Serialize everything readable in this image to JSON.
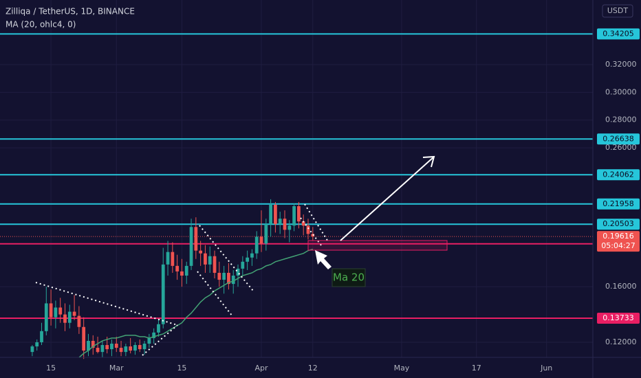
{
  "chart_data": {
    "type": "candlestick",
    "title": "Zilliqa / TetherUS, 1D, BINANCE",
    "currency": "USDT",
    "up_color": "#26a69a",
    "down_color": "#ef5350",
    "open": [
      0.113,
      0.117,
      0.12,
      0.128,
      0.148,
      0.138,
      0.145,
      0.14,
      0.134,
      0.142,
      0.139,
      0.131,
      0.114,
      0.121,
      0.116,
      0.113,
      0.118,
      0.115,
      0.119,
      0.116,
      0.113,
      0.117,
      0.114,
      0.118,
      0.115,
      0.119,
      0.123,
      0.127,
      0.133,
      0.176,
      0.185,
      0.175,
      0.171,
      0.168,
      0.175,
      0.203,
      0.186,
      0.184,
      0.176,
      0.182,
      0.17,
      0.165,
      0.17,
      0.162,
      0.168,
      0.173,
      0.178,
      0.181,
      0.184,
      0.196,
      0.191,
      0.205,
      0.219,
      0.205,
      0.209,
      0.201,
      0.204,
      0.218,
      0.207,
      0.204,
      0.198
    ],
    "high": [
      0.118,
      0.122,
      0.134,
      0.16,
      0.158,
      0.15,
      0.152,
      0.148,
      0.147,
      0.154,
      0.146,
      0.138,
      0.126,
      0.125,
      0.124,
      0.121,
      0.124,
      0.122,
      0.124,
      0.121,
      0.119,
      0.123,
      0.12,
      0.122,
      0.121,
      0.126,
      0.13,
      0.137,
      0.188,
      0.193,
      0.192,
      0.183,
      0.18,
      0.178,
      0.209,
      0.21,
      0.193,
      0.19,
      0.189,
      0.186,
      0.178,
      0.175,
      0.177,
      0.172,
      0.176,
      0.182,
      0.186,
      0.187,
      0.2,
      0.215,
      0.209,
      0.223,
      0.221,
      0.214,
      0.215,
      0.208,
      0.22,
      0.221,
      0.212,
      0.209,
      0.203
    ],
    "low": [
      0.11,
      0.114,
      0.118,
      0.125,
      0.132,
      0.13,
      0.134,
      0.128,
      0.13,
      0.136,
      0.126,
      0.108,
      0.11,
      0.111,
      0.112,
      0.109,
      0.112,
      0.11,
      0.113,
      0.11,
      0.11,
      0.112,
      0.111,
      0.113,
      0.111,
      0.116,
      0.119,
      0.124,
      0.13,
      0.168,
      0.17,
      0.165,
      0.16,
      0.162,
      0.172,
      0.18,
      0.175,
      0.17,
      0.17,
      0.166,
      0.16,
      0.155,
      0.158,
      0.155,
      0.16,
      0.168,
      0.172,
      0.175,
      0.18,
      0.185,
      0.186,
      0.196,
      0.199,
      0.198,
      0.195,
      0.192,
      0.2,
      0.202,
      0.197,
      0.194,
      0.193
    ],
    "close": [
      0.117,
      0.12,
      0.128,
      0.148,
      0.138,
      0.145,
      0.14,
      0.134,
      0.142,
      0.139,
      0.131,
      0.114,
      0.121,
      0.116,
      0.113,
      0.118,
      0.115,
      0.119,
      0.116,
      0.113,
      0.117,
      0.114,
      0.118,
      0.115,
      0.119,
      0.123,
      0.127,
      0.133,
      0.176,
      0.185,
      0.175,
      0.171,
      0.168,
      0.175,
      0.203,
      0.186,
      0.184,
      0.176,
      0.182,
      0.17,
      0.165,
      0.17,
      0.162,
      0.168,
      0.173,
      0.178,
      0.181,
      0.184,
      0.196,
      0.191,
      0.205,
      0.219,
      0.205,
      0.209,
      0.201,
      0.204,
      0.218,
      0.207,
      0.204,
      0.198,
      0.19616
    ],
    "ma": {
      "name": "MA (20, ohlc4, 0)",
      "color": "#43a374",
      "annotation": "Ma 20",
      "values": [
        null,
        null,
        null,
        null,
        null,
        null,
        null,
        null,
        null,
        null,
        0.109,
        0.112,
        0.114,
        0.117,
        0.119,
        0.121,
        0.122,
        0.123,
        0.123,
        0.124,
        0.125,
        0.125,
        0.125,
        0.124,
        0.124,
        0.123,
        0.124,
        0.125,
        0.126,
        0.128,
        0.13,
        0.132,
        0.134,
        0.138,
        0.141,
        0.145,
        0.149,
        0.152,
        0.154,
        0.157,
        0.159,
        0.161,
        0.163,
        0.164,
        0.166,
        0.168,
        0.169,
        0.17,
        0.172,
        0.173,
        0.175,
        0.176,
        0.178,
        0.179,
        0.18,
        0.181,
        0.182,
        0.183,
        0.184,
        0.186,
        0.187
      ]
    },
    "levels": [
      {
        "value": 0.34205,
        "color": "#26c6da"
      },
      {
        "value": 0.26638,
        "color": "#26c6da"
      },
      {
        "value": 0.24062,
        "color": "#26c6da"
      },
      {
        "value": 0.21958,
        "color": "#26c6da"
      },
      {
        "value": 0.20503,
        "color": "#26c6da"
      },
      {
        "value": 0.19089,
        "color": "#e91e63"
      },
      {
        "value": 0.13733,
        "color": "#e91e63"
      }
    ],
    "current_price": {
      "value": 0.19616,
      "countdown": "05:04:27",
      "color": "#ef5350"
    },
    "ylim": [
      0.1091,
      0.3665
    ],
    "yticks": [
      {
        "value": 0.12,
        "label": "0.12000"
      },
      {
        "value": 0.16,
        "label": "0.16000"
      },
      {
        "value": 0.26,
        "label": "0.26000"
      },
      {
        "value": 0.28,
        "label": "0.28000"
      },
      {
        "value": 0.3,
        "label": "0.30000"
      },
      {
        "value": 0.32,
        "label": "0.32000"
      }
    ],
    "xlim": [
      -6.9,
      119.9
    ],
    "xticks": [
      {
        "value": 4,
        "label": "15"
      },
      {
        "value": 18,
        "label": "Mar"
      },
      {
        "value": 32,
        "label": "15"
      },
      {
        "value": 49,
        "label": "Apr"
      },
      {
        "value": 60,
        "label": "12"
      },
      {
        "value": 79,
        "label": "May"
      },
      {
        "value": 95,
        "label": "17"
      },
      {
        "value": 110,
        "label": "Jun"
      }
    ],
    "grid": true
  }
}
